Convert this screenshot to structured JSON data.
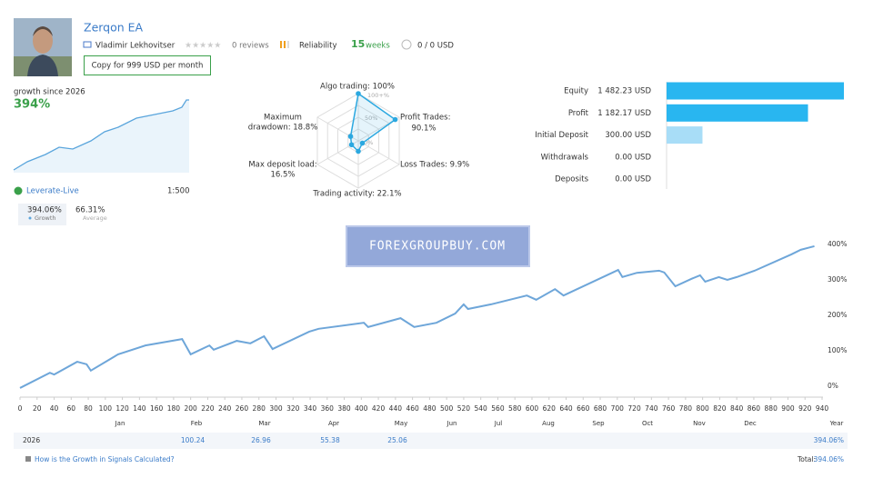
{
  "header": {
    "name": "Zerqon EA",
    "author": "Vladimir Lekhovitser",
    "reviews": "0 reviews",
    "reliability": "Reliability",
    "weeks_count": "15",
    "weeks": "weeks",
    "subscribers": "0 / 0 USD",
    "copy_button": "Copy for 999 USD per month"
  },
  "growth_summary": {
    "label": "growth since 2026",
    "value": "394%"
  },
  "account": {
    "broker": "Leverate-Live",
    "leverage": "1:500",
    "stats": [
      {
        "value": "394.06%",
        "label": "Growth"
      },
      {
        "value": "66.31%",
        "label": "Average"
      }
    ]
  },
  "radar": {
    "type": "radar",
    "scale_labels": [
      "100+%",
      "50%",
      "0%"
    ],
    "rlim": [
      0,
      100
    ],
    "color": "#2ba8e0",
    "axes": [
      {
        "lines": [
          "Algo trading: 100%"
        ],
        "value": 100
      },
      {
        "lines": [
          "Profit Trades:",
          "90.1%"
        ],
        "value": 90.1
      },
      {
        "lines": [
          "Loss Trades: 9.9%"
        ],
        "value": 9.9
      },
      {
        "lines": [
          "Trading activity: 22.1%"
        ],
        "value": 22.1
      },
      {
        "lines": [
          "Max deposit load:",
          "16.5%"
        ],
        "value": 16.5
      },
      {
        "lines": [
          "Maximum",
          "drawdown: 18.8%"
        ],
        "value": 18.8
      }
    ]
  },
  "balance_chart": {
    "type": "bar",
    "categories": [
      "Equity",
      "Profit",
      "Initial Deposit",
      "Withdrawals",
      "Deposits"
    ],
    "values": [
      1482.23,
      1182.17,
      300.0,
      0.0,
      0.0
    ],
    "value_labels": [
      "1 482.23 USD",
      "1 182.17 USD",
      "300.00 USD",
      "0.00 USD",
      "0.00 USD"
    ],
    "colors": [
      "#29b6f0",
      "#29b6f0",
      "#a8ddf7",
      "#29b6f0",
      "#29b6f0"
    ],
    "xlim": [
      0,
      1482.23
    ]
  },
  "growth_chart": {
    "type": "line",
    "color": "#6ea6d9",
    "x": [
      0,
      35,
      40,
      67,
      78,
      83,
      115,
      147,
      190,
      200,
      222,
      227,
      254,
      270,
      286,
      296,
      339,
      350,
      403,
      408,
      446,
      462,
      488,
      510,
      520,
      525,
      552,
      594,
      605,
      627,
      637,
      701,
      706,
      723,
      749,
      755,
      768,
      787,
      797,
      803,
      819,
      829,
      840,
      861,
      904,
      915,
      931
    ],
    "values": [
      -5,
      38,
      33,
      69,
      62,
      44,
      90,
      115,
      133,
      90,
      115,
      103,
      128,
      121,
      141,
      105,
      154,
      162,
      179,
      167,
      192,
      167,
      179,
      205,
      231,
      218,
      231,
      256,
      244,
      274,
      256,
      328,
      308,
      320,
      326,
      321,
      282,
      303,
      313,
      295,
      308,
      300,
      308,
      326,
      372,
      385,
      395
    ],
    "xlim": [
      0,
      940
    ],
    "xticks": [
      0,
      20,
      40,
      60,
      80,
      100,
      120,
      140,
      160,
      180,
      200,
      220,
      240,
      260,
      280,
      300,
      320,
      340,
      360,
      380,
      400,
      420,
      440,
      460,
      480,
      500,
      520,
      540,
      560,
      580,
      600,
      620,
      640,
      660,
      680,
      700,
      720,
      740,
      760,
      780,
      800,
      820,
      840,
      860,
      880,
      900,
      920,
      940
    ],
    "ylim": [
      -10,
      420
    ],
    "yticks": [
      {
        "value": 0,
        "label": "0%"
      },
      {
        "value": 100,
        "label": "100%"
      },
      {
        "value": 200,
        "label": "200%"
      },
      {
        "value": 300,
        "label": "300%"
      },
      {
        "value": 400,
        "label": "400%"
      }
    ],
    "months": [
      "Jan",
      "Feb",
      "Mar",
      "Apr",
      "May",
      "Jun",
      "Jul",
      "Aug",
      "Sep",
      "Oct",
      "Nov",
      "Dec"
    ],
    "year_label": "Year"
  },
  "yearly_table": {
    "year": "2026",
    "months": [
      null,
      "100.24",
      "26.96",
      "55.38",
      "25.06",
      null,
      null,
      null,
      null,
      null,
      null,
      null
    ],
    "total": "394.06%"
  },
  "footer": {
    "help_link": "How is the Growth in Signals Calculated?",
    "total_label": "Total:",
    "total_value": "394.06%"
  },
  "watermark": "FOREXGROUPBUY.COM"
}
